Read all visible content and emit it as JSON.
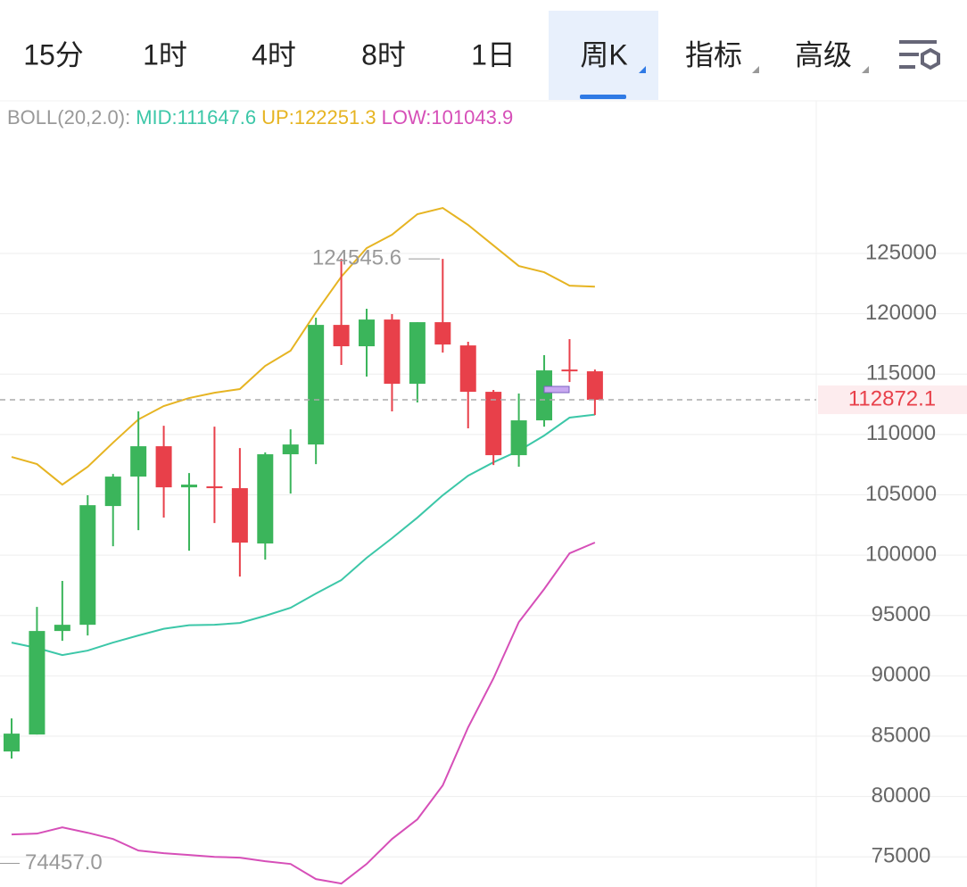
{
  "tabs": {
    "items": [
      "15分",
      "1时",
      "4时",
      "8时",
      "1日",
      "周K",
      "指标",
      "高级"
    ],
    "active": 5
  },
  "chart_data": {
    "type": "candlestick",
    "indicator": "BOLL(20,2.0):",
    "open": [
      83730,
      85135,
      93715,
      94230,
      104070,
      106510,
      109025,
      105620,
      105700,
      105550,
      100965,
      108360,
      109170,
      119080,
      117310,
      119525,
      114200,
      119305,
      117380,
      113535,
      108285,
      111170,
      115380,
      115235
    ],
    "high": [
      86470,
      95710,
      97860,
      104960,
      106730,
      111910,
      110725,
      106805,
      110650,
      108875,
      108510,
      110430,
      119675,
      124545.6,
      120415,
      119970,
      119305,
      124545.6,
      117680,
      113685,
      113390,
      116570,
      117900,
      115380
    ],
    "low": [
      83140,
      85135,
      92900,
      93345,
      100740,
      102070,
      103110,
      100370,
      102665,
      98225,
      99630,
      105105,
      107545,
      115755,
      114795,
      111910,
      112650,
      116790,
      110505,
      107470,
      107325,
      110650,
      114350,
      111610
    ],
    "close": [
      85210,
      93715,
      94230,
      104140,
      106510,
      109025,
      105620,
      105845,
      105550,
      101040,
      108360,
      109170,
      119080,
      117310,
      119525,
      114200,
      119305,
      117455,
      113535,
      108285,
      111170,
      115310,
      115235,
      112872.1
    ],
    "up_color": "#3bb55b",
    "down_color": "#e8404a",
    "series": [
      {
        "name": "MID:",
        "color": "#3cc7a8",
        "values": [
          92755,
          92310,
          91720,
          92090,
          92755,
          93345,
          93900,
          94190,
          94230,
          94380,
          94970,
          95640,
          96820,
          97930,
          99780,
          101405,
          103110,
          104960,
          106585,
          107695,
          108655,
          109910,
          111395,
          111647.6
        ]
      },
      {
        "name": "UP:",
        "color": "#e6b422",
        "values": [
          108137,
          107545,
          105845,
          107320,
          109320,
          111245,
          112355,
          113020,
          113460,
          113760,
          115680,
          116940,
          120120,
          123075,
          125445,
          126555,
          128255,
          128770,
          127365,
          125665,
          123965,
          123445,
          122335,
          122251.3
        ]
      },
      {
        "name": "LOW:",
        "color": "#d64fb8",
        "values": [
          76850,
          76925,
          77440,
          76995,
          76480,
          75520,
          75300,
          75150,
          75000,
          74930,
          74635,
          74410,
          73155,
          72785,
          74410,
          76480,
          78110,
          80920,
          85725,
          89795,
          94455,
          97190,
          100150,
          101043.9
        ]
      }
    ],
    "low_marker": {
      "value": 74457,
      "label": "74457.0"
    },
    "ylim": [
      72500,
      137500
    ],
    "yticks": [
      75000,
      80000,
      85000,
      90000,
      95000,
      100000,
      105000,
      110000,
      115000,
      120000,
      125000
    ],
    "grid": true
  }
}
